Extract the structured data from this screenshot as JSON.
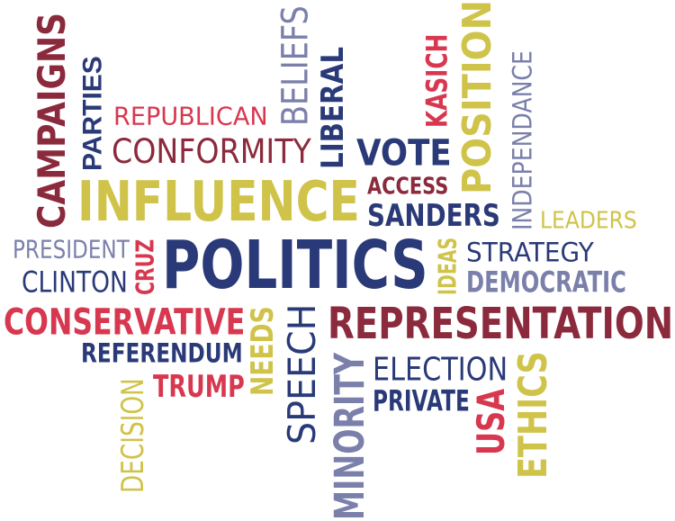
{
  "palette": {
    "maroon": "#8b2a3c",
    "navy": "#2a3a78",
    "olive": "#cfc34a",
    "slate": "#7b80ab",
    "crimson": "#d7384f",
    "pink": "#c43a5a"
  },
  "words": [
    {
      "name": "word-campaigns",
      "text": "CAMPAIGNS",
      "color": "maroon",
      "style": "bold",
      "rotate": -90
    },
    {
      "name": "word-parties",
      "text": "PARTIES",
      "color": "navy",
      "style": "bold",
      "rotate": -90
    },
    {
      "name": "word-republican",
      "text": "REPUBLICAN",
      "color": "crimson",
      "style": "light",
      "rotate": 0
    },
    {
      "name": "word-beliefs",
      "text": "BELIEFS",
      "color": "slate",
      "style": "light",
      "rotate": -90
    },
    {
      "name": "word-liberal",
      "text": "LIBERAL",
      "color": "navy",
      "style": "bold",
      "rotate": -90
    },
    {
      "name": "word-kasich",
      "text": "KASICH",
      "color": "crimson",
      "style": "bold",
      "rotate": -90
    },
    {
      "name": "word-position",
      "text": "POSITION",
      "color": "olive",
      "style": "bold",
      "rotate": -90
    },
    {
      "name": "word-independance",
      "text": "INDEPENDANCE",
      "color": "slate",
      "style": "light",
      "rotate": -90
    },
    {
      "name": "word-conformity",
      "text": "CONFORMITY",
      "color": "maroon",
      "style": "light",
      "rotate": 0
    },
    {
      "name": "word-vote",
      "text": "VOTE",
      "color": "navy",
      "style": "bold",
      "rotate": 0
    },
    {
      "name": "word-influence",
      "text": "INFLUENCE",
      "color": "olive",
      "style": "bold",
      "rotate": 0
    },
    {
      "name": "word-access",
      "text": "ACCESS",
      "color": "maroon",
      "style": "bold",
      "rotate": 0
    },
    {
      "name": "word-sanders",
      "text": "SANDERS",
      "color": "navy",
      "style": "bold",
      "rotate": 0
    },
    {
      "name": "word-leaders",
      "text": "LEADERS",
      "color": "olive",
      "style": "light",
      "rotate": 0
    },
    {
      "name": "word-president",
      "text": "PRESIDENT",
      "color": "slate",
      "style": "light",
      "rotate": 0
    },
    {
      "name": "word-cruz",
      "text": "CRUZ",
      "color": "crimson",
      "style": "bold",
      "rotate": -90
    },
    {
      "name": "word-politics",
      "text": "POLITICS",
      "color": "navy",
      "style": "bold",
      "rotate": 0
    },
    {
      "name": "word-ideas",
      "text": "IDEAS",
      "color": "olive",
      "style": "bold",
      "rotate": -90
    },
    {
      "name": "word-strategy",
      "text": "STRATEGY",
      "color": "navy",
      "style": "light",
      "rotate": 0
    },
    {
      "name": "word-clinton",
      "text": "CLINTON",
      "color": "navy",
      "style": "light",
      "rotate": 0
    },
    {
      "name": "word-democratic",
      "text": "DEMOCRATIC",
      "color": "slate",
      "style": "bold",
      "rotate": 0
    },
    {
      "name": "word-conservative",
      "text": "CONSERVATIVE",
      "color": "crimson",
      "style": "bold",
      "rotate": 0
    },
    {
      "name": "word-needs",
      "text": "NEEDS",
      "color": "olive",
      "style": "bold",
      "rotate": -90
    },
    {
      "name": "word-speech",
      "text": "SPEECH",
      "color": "navy",
      "style": "light",
      "rotate": -90
    },
    {
      "name": "word-representation",
      "text": "REPRESENTATION",
      "color": "maroon",
      "style": "bold",
      "rotate": 0
    },
    {
      "name": "word-referendum",
      "text": "REFERENDUM",
      "color": "navy",
      "style": "bold",
      "rotate": 0
    },
    {
      "name": "word-minority",
      "text": "MINORITY",
      "color": "slate",
      "style": "bold",
      "rotate": -90
    },
    {
      "name": "word-election",
      "text": "ELECTION",
      "color": "navy",
      "style": "light",
      "rotate": 0
    },
    {
      "name": "word-trump",
      "text": "TRUMP",
      "color": "crimson",
      "style": "bold",
      "rotate": 0
    },
    {
      "name": "word-private",
      "text": "PRIVATE",
      "color": "navy",
      "style": "bold",
      "rotate": 0
    },
    {
      "name": "word-usa",
      "text": "USA",
      "color": "crimson",
      "style": "bold",
      "rotate": -90
    },
    {
      "name": "word-ethics",
      "text": "ETHICS",
      "color": "olive",
      "style": "bold",
      "rotate": -90
    },
    {
      "name": "word-decision",
      "text": "DECISION",
      "color": "olive",
      "style": "light",
      "rotate": -90
    }
  ]
}
